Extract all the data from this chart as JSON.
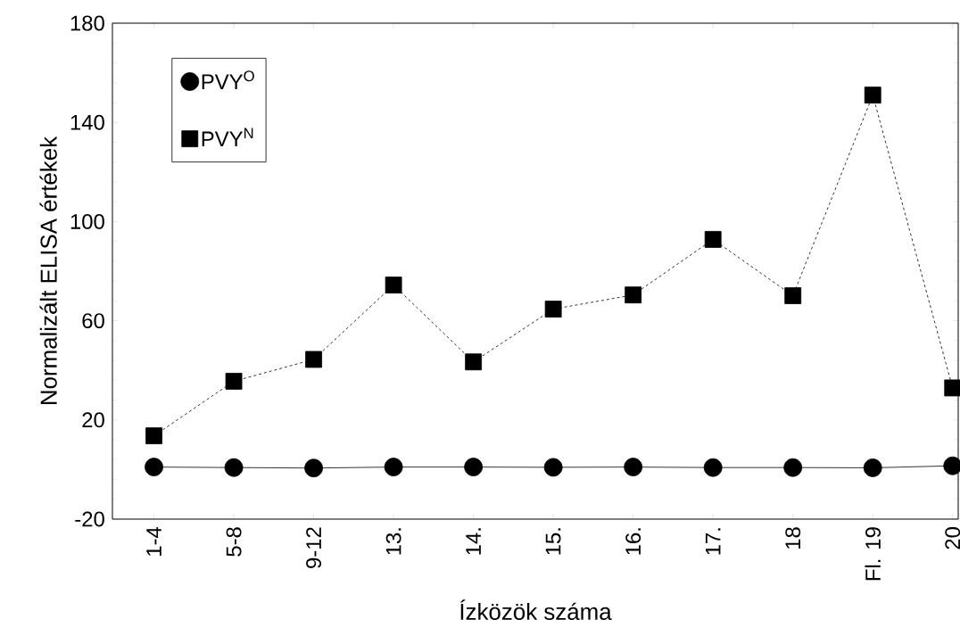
{
  "chart_data": {
    "type": "line",
    "xlabel": "Ízközök száma",
    "ylabel": "Normalizált ELISA értékek",
    "categories": [
      "1-4",
      "5-8",
      "9-12",
      "13.",
      "14.",
      "15.",
      "16.",
      "17.",
      "18",
      "Fl. 19",
      "20"
    ],
    "series": [
      {
        "name": "PVY$^{O}$",
        "color": "#000000",
        "marker": "circle",
        "line_style": "solid",
        "values": [
          1,
          0.8,
          0.6,
          1,
          1,
          0.9,
          1,
          0.8,
          0.8,
          0.7,
          1.5
        ]
      },
      {
        "name": "PVY$^{N}$",
        "color": "#000000",
        "marker": "square",
        "line_style": "dashed",
        "values": [
          13.6,
          35.6,
          44.4,
          74.4,
          43.4,
          64.7,
          70.4,
          92.8,
          70.1,
          151,
          32.9
        ]
      }
    ],
    "ylim": [
      -20,
      180
    ],
    "yticks": [
      -20,
      20,
      60,
      100,
      140,
      180
    ],
    "grid": false,
    "legend": "top left"
  }
}
